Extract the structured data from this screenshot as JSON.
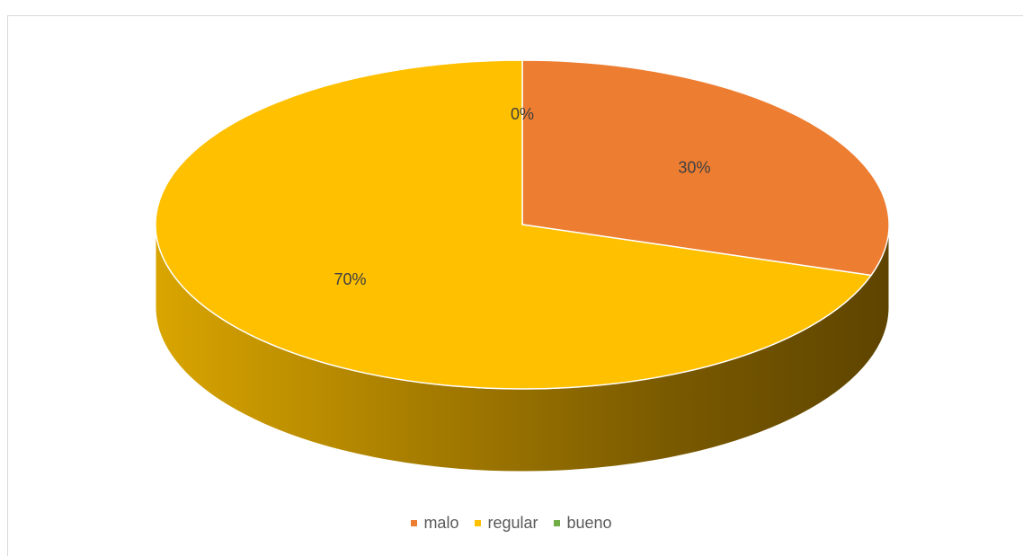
{
  "chart_data": {
    "type": "pie",
    "title": "",
    "categories": [
      "malo",
      "regular",
      "bueno"
    ],
    "values": [
      30,
      70,
      0
    ],
    "data_labels": [
      "30%",
      "70%",
      "0%"
    ],
    "legend_position": "bottom",
    "three_d": true,
    "colors": {
      "malo": "#ED7D31",
      "regular": "#FFC000",
      "bueno": "#70AD47"
    }
  },
  "legend": {
    "items": [
      {
        "label": "malo",
        "color": "#ED7D31"
      },
      {
        "label": "regular",
        "color": "#FFC000"
      },
      {
        "label": "bueno",
        "color": "#70AD47"
      }
    ]
  }
}
